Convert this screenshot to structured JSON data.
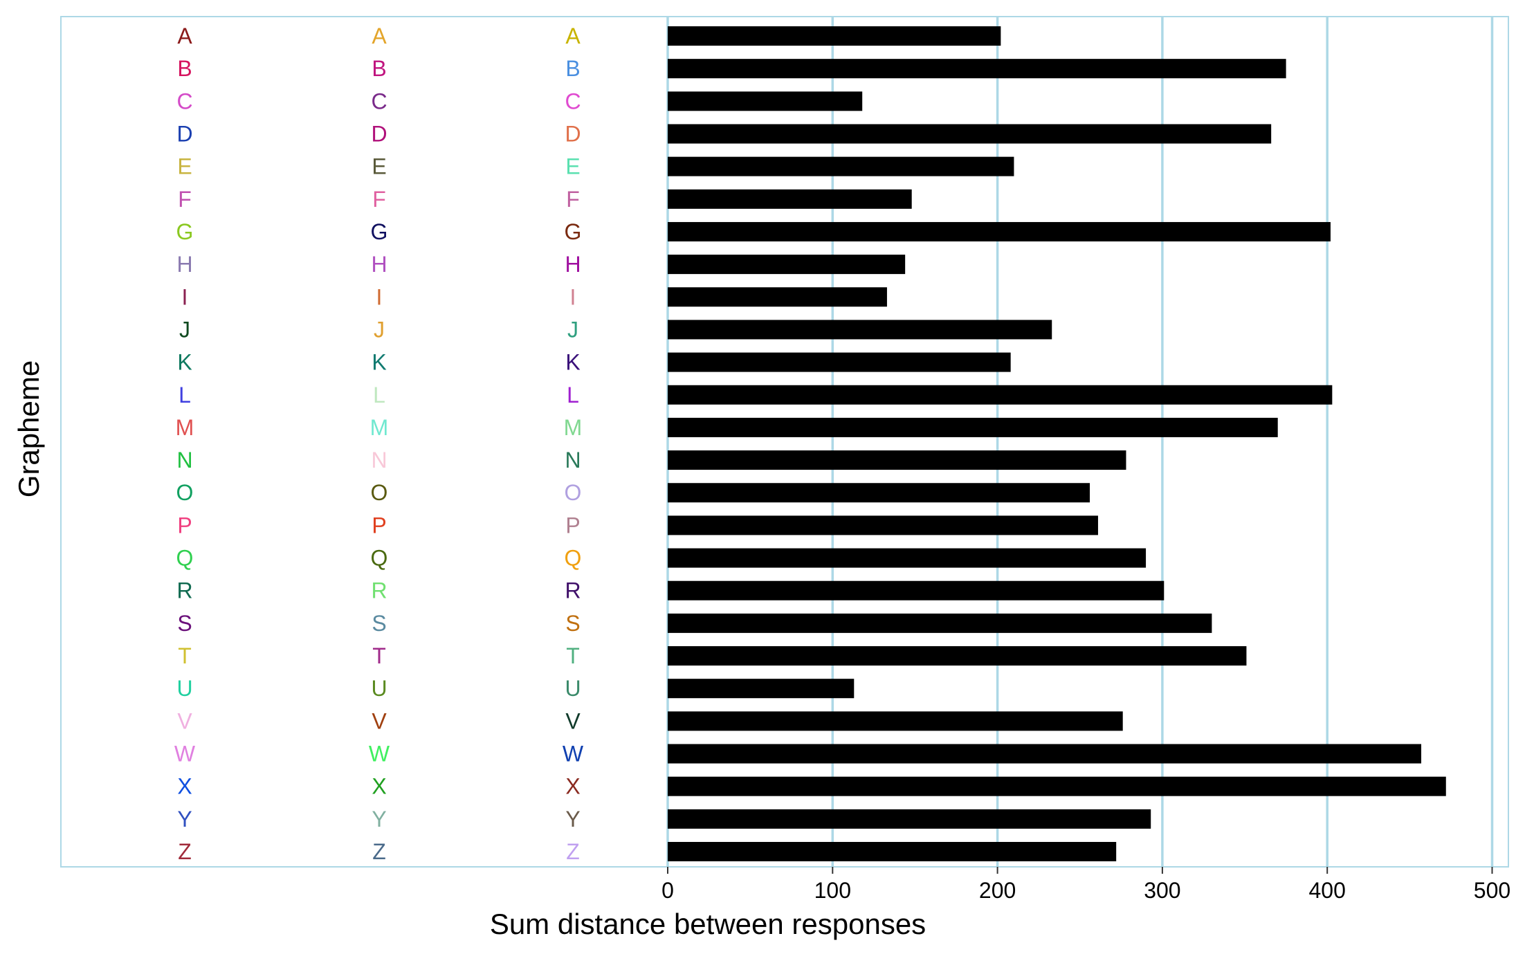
{
  "chart_data": {
    "type": "bar",
    "orientation": "horizontal",
    "xlabel": "Sum distance between responses",
    "ylabel": "Grapheme",
    "xlim": [
      0,
      510
    ],
    "xticks": [
      0,
      100,
      200,
      300,
      400,
      500
    ],
    "grid": "vertical",
    "legend": "none",
    "colors": {
      "bar": "#000000",
      "grid": "#add8e6",
      "panel_border": "#add8e6"
    },
    "categories": [
      "A",
      "B",
      "C",
      "D",
      "E",
      "F",
      "G",
      "H",
      "I",
      "J",
      "K",
      "L",
      "M",
      "N",
      "O",
      "P",
      "Q",
      "R",
      "S",
      "T",
      "U",
      "V",
      "W",
      "X",
      "Y",
      "Z"
    ],
    "values": [
      202,
      375,
      118,
      366,
      210,
      148,
      402,
      144,
      133,
      233,
      208,
      403,
      370,
      278,
      256,
      261,
      290,
      301,
      330,
      351,
      113,
      276,
      457,
      472,
      293,
      272
    ],
    "grapheme_colors": [
      [
        "#8b1a1a",
        "#e3a52b",
        "#c8b400"
      ],
      [
        "#d6145f",
        "#c0147f",
        "#4a8fe0"
      ],
      [
        "#d44ac8",
        "#7a2a8a",
        "#e04ad0"
      ],
      [
        "#1a3fb0",
        "#b0107a",
        "#e0704a"
      ],
      [
        "#c8b440",
        "#5a5a3a",
        "#5ae0b0"
      ],
      [
        "#c050b0",
        "#e060a0",
        "#c060a0"
      ],
      [
        "#8ac820",
        "#101060",
        "#7a2a10"
      ],
      [
        "#8a7ab0",
        "#b050c0",
        "#a010a0"
      ],
      [
        "#8a2050",
        "#d06a30",
        "#d08090"
      ],
      [
        "#104a20",
        "#e0a030",
        "#30a080"
      ],
      [
        "#107a60",
        "#107a70",
        "#3a107a"
      ],
      [
        "#4040e0",
        "#c0e8c0",
        "#a020d0"
      ],
      [
        "#e05050",
        "#70e8d0",
        "#80d890"
      ],
      [
        "#20c040",
        "#f8c8d8",
        "#2a7a5a"
      ],
      [
        "#10a060",
        "#5a5a10",
        "#b0a0e0"
      ],
      [
        "#f04080",
        "#e04020",
        "#b08090"
      ],
      [
        "#30d050",
        "#4a6a10",
        "#f0a010"
      ],
      [
        "#106a50",
        "#70e070",
        "#40106a"
      ],
      [
        "#6a107a",
        "#5a8aa0",
        "#c07010"
      ],
      [
        "#d0c030",
        "#a02a8a",
        "#50b080"
      ],
      [
        "#20d0a0",
        "#5a8a20",
        "#3a8a6a"
      ],
      [
        "#f0b0e0",
        "#a04010",
        "#103a2a"
      ],
      [
        "#e080e0",
        "#40f060",
        "#1040b0"
      ],
      [
        "#1050e0",
        "#20a020",
        "#8a2a20"
      ],
      [
        "#3050c0",
        "#80b0a0",
        "#6a5a4a"
      ],
      [
        "#a02a3a",
        "#4a6a8a",
        "#c0a0f0"
      ]
    ]
  }
}
